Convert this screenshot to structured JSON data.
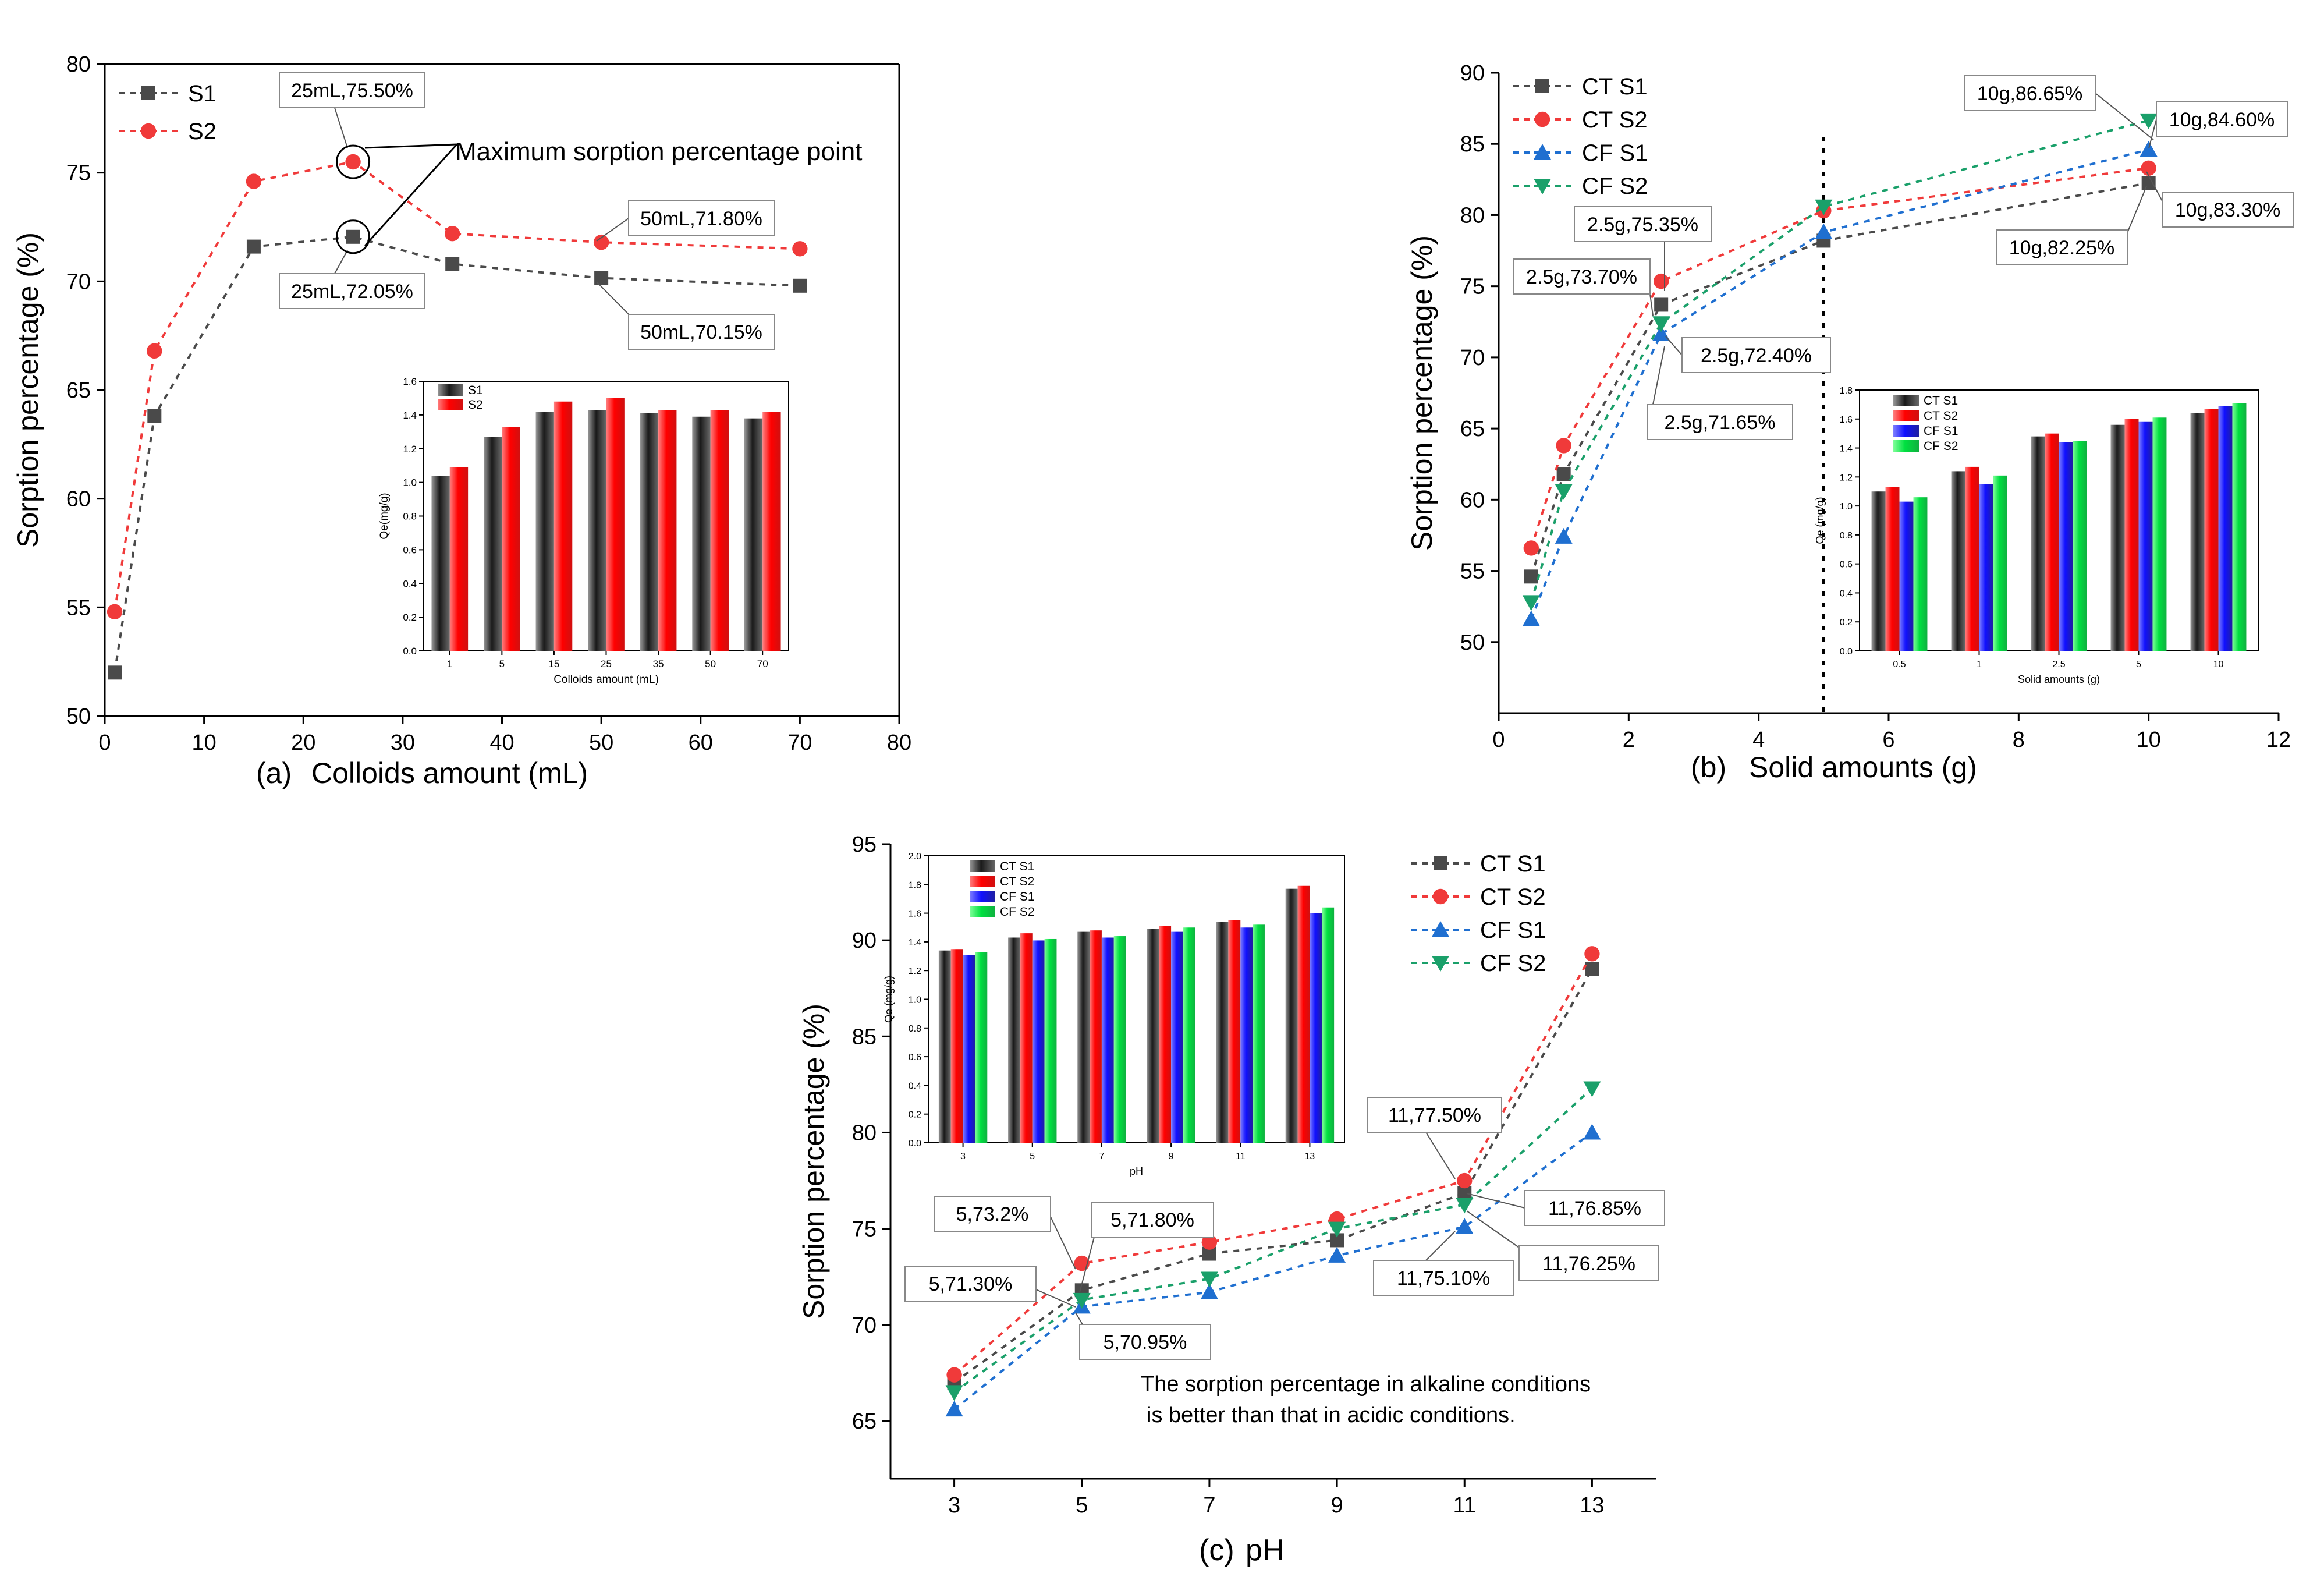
{
  "chart_data": [
    {
      "id": "a",
      "type": "line",
      "panel_label": "(a)",
      "xlabel": "Colloids amount (mL)",
      "ylabel": "Sorption percentage (%)",
      "xlim": [
        0,
        80
      ],
      "ylim": [
        50,
        80
      ],
      "xticks": [
        0,
        10,
        20,
        30,
        40,
        50,
        60,
        70,
        80
      ],
      "yticks": [
        50,
        55,
        60,
        65,
        70,
        75,
        80
      ],
      "legend_position": "top-left",
      "series": [
        {
          "name": "S1",
          "marker": "square",
          "color": "#4a4a4a",
          "x": [
            1,
            5,
            15,
            25,
            35,
            50,
            70
          ],
          "y": [
            52.0,
            63.8,
            71.6,
            72.05,
            70.8,
            70.15,
            69.8
          ]
        },
        {
          "name": "S2",
          "marker": "circle",
          "color": "#f03a3a",
          "x": [
            1,
            5,
            15,
            25,
            35,
            50,
            70
          ],
          "y": [
            54.8,
            66.8,
            74.6,
            75.5,
            72.2,
            71.8,
            71.5
          ]
        }
      ],
      "annotations": [
        {
          "text": "25mL,75.50%",
          "x": 25,
          "y": 75.5
        },
        {
          "text": "25mL,72.05%",
          "x": 25,
          "y": 72.05
        },
        {
          "text": "50mL,71.80%",
          "x": 50,
          "y": 71.8
        },
        {
          "text": "50mL,70.15%",
          "x": 50,
          "y": 70.15
        },
        {
          "text": "Maximum sorption percentage point"
        }
      ],
      "inset": {
        "type": "bar",
        "xlabel": "Colloids amount (mL)",
        "ylabel": "Qe(mg/g)",
        "ylim": [
          0,
          1.6
        ],
        "yticks": [
          "0.0",
          "0.2",
          "0.4",
          "0.6",
          "0.8",
          "1.0",
          "1.2",
          "1.4",
          "1.6"
        ],
        "categories": [
          "1",
          "5",
          "15",
          "25",
          "35",
          "50",
          "70"
        ],
        "series": [
          {
            "name": "S1",
            "color": "#333333",
            "values": [
              1.04,
              1.27,
              1.42,
              1.43,
              1.41,
              1.39,
              1.38
            ]
          },
          {
            "name": "S2",
            "color": "#ff1a1a",
            "values": [
              1.09,
              1.33,
              1.48,
              1.5,
              1.43,
              1.43,
              1.42
            ]
          }
        ]
      }
    },
    {
      "id": "b",
      "type": "line",
      "panel_label": "(b)",
      "xlabel": "Solid amounts (g)",
      "ylabel": "Sorption percentage (%)",
      "xlim": [
        0,
        12
      ],
      "ylim": [
        45,
        90
      ],
      "xticks": [
        0,
        2,
        4,
        6,
        8,
        10,
        12
      ],
      "yticks": [
        50,
        55,
        60,
        65,
        70,
        75,
        80,
        85,
        90
      ],
      "legend_position": "top-left",
      "vline_x": 5,
      "series": [
        {
          "name": "CT S1",
          "marker": "square",
          "color": "#4a4a4a",
          "x": [
            0.5,
            1,
            2.5,
            5,
            10
          ],
          "y": [
            54.6,
            61.8,
            73.7,
            78.2,
            82.25
          ]
        },
        {
          "name": "CT S2",
          "marker": "circle",
          "color": "#f03a3a",
          "x": [
            0.5,
            1,
            2.5,
            5,
            10
          ],
          "y": [
            56.6,
            63.8,
            75.35,
            80.3,
            83.3
          ]
        },
        {
          "name": "CF S1",
          "marker": "triangle-up",
          "color": "#1f6fd0",
          "x": [
            0.5,
            1,
            2.5,
            5,
            10
          ],
          "y": [
            51.6,
            57.4,
            71.65,
            78.8,
            84.6
          ]
        },
        {
          "name": "CF S2",
          "marker": "triangle-down",
          "color": "#1aa06a",
          "x": [
            0.5,
            1,
            2.5,
            5,
            10
          ],
          "y": [
            52.8,
            60.6,
            72.4,
            80.6,
            86.65
          ]
        }
      ],
      "annotations": [
        {
          "text": "2.5g,75.35%",
          "x": 2.5,
          "y": 75.35
        },
        {
          "text": "2.5g,73.70%",
          "x": 2.5,
          "y": 73.7
        },
        {
          "text": "2.5g,72.40%",
          "x": 2.5,
          "y": 72.4
        },
        {
          "text": "2.5g,71.65%",
          "x": 2.5,
          "y": 71.65
        },
        {
          "text": "10g,86.65%",
          "x": 10,
          "y": 86.65
        },
        {
          "text": "10g,84.60%",
          "x": 10,
          "y": 84.6
        },
        {
          "text": "10g,83.30%",
          "x": 10,
          "y": 83.3
        },
        {
          "text": "10g,82.25%",
          "x": 10,
          "y": 82.25
        }
      ],
      "inset": {
        "type": "bar",
        "xlabel": "Solid amounts (g)",
        "ylabel": "Qe (mg/g)",
        "ylim": [
          0,
          1.8
        ],
        "yticks": [
          "0.0",
          "0.2",
          "0.4",
          "0.6",
          "0.8",
          "1.0",
          "1.2",
          "1.4",
          "1.6",
          "1.8"
        ],
        "categories": [
          "0.5",
          "1",
          "2.5",
          "5",
          "10"
        ],
        "series": [
          {
            "name": "CT S1",
            "color": "#333333",
            "values": [
              1.1,
              1.24,
              1.48,
              1.56,
              1.64
            ]
          },
          {
            "name": "CT S2",
            "color": "#ff1a1a",
            "values": [
              1.13,
              1.27,
              1.5,
              1.6,
              1.67
            ]
          },
          {
            "name": "CF S1",
            "color": "#2020ff",
            "values": [
              1.03,
              1.15,
              1.44,
              1.58,
              1.69
            ]
          },
          {
            "name": "CF S2",
            "color": "#00e04a",
            "values": [
              1.06,
              1.21,
              1.45,
              1.61,
              1.71
            ]
          }
        ]
      }
    },
    {
      "id": "c",
      "type": "line",
      "panel_label": "(c)",
      "xlabel": "pH",
      "ylabel": "Sorption percentage (%)",
      "xlim": [
        2,
        14
      ],
      "ylim": [
        62,
        95
      ],
      "xticks": [
        3,
        5,
        7,
        9,
        11,
        13
      ],
      "yticks": [
        65,
        70,
        75,
        80,
        85,
        90,
        95
      ],
      "legend_position": "top-right",
      "series": [
        {
          "name": "CT S1",
          "marker": "square",
          "color": "#4a4a4a",
          "x": [
            3,
            5,
            7,
            9,
            11,
            13
          ],
          "y": [
            67.0,
            71.8,
            73.7,
            74.4,
            76.85,
            88.5
          ]
        },
        {
          "name": "CT S2",
          "marker": "circle",
          "color": "#f03a3a",
          "x": [
            3,
            5,
            7,
            9,
            11,
            13
          ],
          "y": [
            67.4,
            73.2,
            74.3,
            75.5,
            77.5,
            89.3
          ]
        },
        {
          "name": "CF S1",
          "marker": "triangle-up",
          "color": "#1f6fd0",
          "x": [
            3,
            5,
            7,
            9,
            11,
            13
          ],
          "y": [
            65.6,
            70.95,
            71.7,
            73.6,
            75.1,
            80.0
          ]
        },
        {
          "name": "CF S2",
          "marker": "triangle-down",
          "color": "#1aa06a",
          "x": [
            3,
            5,
            7,
            9,
            11,
            13
          ],
          "y": [
            66.5,
            71.3,
            72.4,
            75.0,
            76.25,
            82.3
          ]
        }
      ],
      "annotations": [
        {
          "text": "5,73.2%",
          "x": 5,
          "y": 73.2
        },
        {
          "text": "5,71.80%",
          "x": 5,
          "y": 71.8
        },
        {
          "text": "5,71.30%",
          "x": 5,
          "y": 71.3
        },
        {
          "text": "5,70.95%",
          "x": 5,
          "y": 70.95
        },
        {
          "text": "11,77.50%",
          "x": 11,
          "y": 77.5
        },
        {
          "text": "11,76.85%",
          "x": 11,
          "y": 76.85
        },
        {
          "text": "11,76.25%",
          "x": 11,
          "y": 76.25
        },
        {
          "text": "11,75.10%",
          "x": 11,
          "y": 75.1
        },
        {
          "text": "The sorption percentage in alkaline conditions"
        },
        {
          "text": "is better than that in acidic conditions."
        }
      ],
      "inset": {
        "type": "bar",
        "xlabel": "pH",
        "ylabel": "Qe (mg/g)",
        "ylim": [
          0,
          2.0
        ],
        "yticks": [
          "0.0",
          "0.2",
          "0.4",
          "0.6",
          "0.8",
          "1.0",
          "1.2",
          "1.4",
          "1.6",
          "1.8",
          "2.0"
        ],
        "categories": [
          "3",
          "5",
          "7",
          "9",
          "11",
          "13"
        ],
        "series": [
          {
            "name": "CT S1",
            "color": "#333333",
            "values": [
              1.34,
              1.43,
              1.47,
              1.49,
              1.54,
              1.77
            ]
          },
          {
            "name": "CT S2",
            "color": "#ff1a1a",
            "values": [
              1.35,
              1.46,
              1.48,
              1.51,
              1.55,
              1.79
            ]
          },
          {
            "name": "CF S1",
            "color": "#2020ff",
            "values": [
              1.31,
              1.41,
              1.43,
              1.47,
              1.5,
              1.6
            ]
          },
          {
            "name": "CF S2",
            "color": "#00e04a",
            "values": [
              1.33,
              1.42,
              1.44,
              1.5,
              1.52,
              1.64
            ]
          }
        ]
      }
    }
  ]
}
